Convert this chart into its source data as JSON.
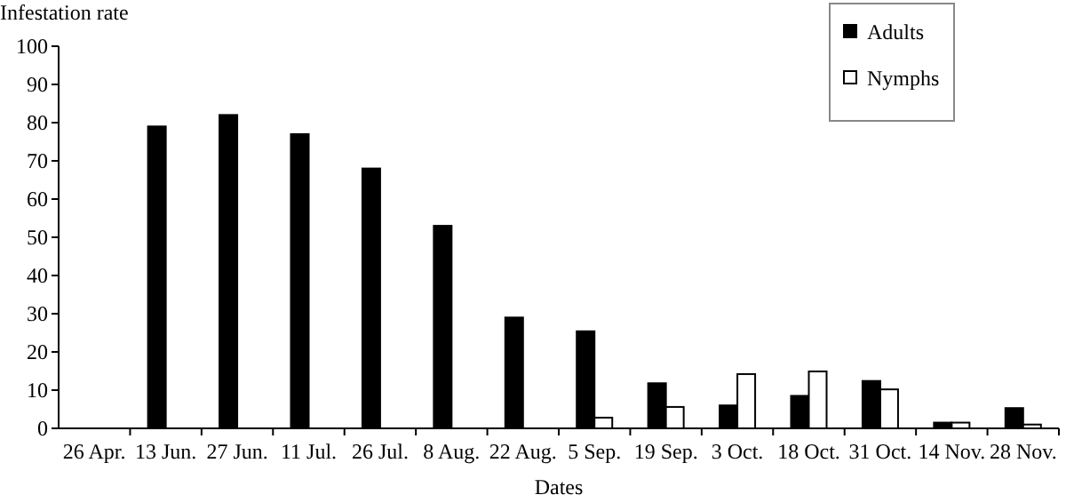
{
  "chart_data": {
    "type": "bar",
    "xlabel": "Dates",
    "ylabel": "Infestation rate",
    "categories": [
      "26 Apr.",
      "13 Jun.",
      "27 Jun.",
      "11 Jul.",
      "26 Jul.",
      "8 Aug.",
      "22 Aug.",
      "5 Sep.",
      "19 Sep.",
      "3 Oct.",
      "18 Oct.",
      "31 Oct.",
      "14 Nov.",
      "28 Nov."
    ],
    "series": [
      {
        "name": "Adults",
        "color": "#000000",
        "values": [
          0,
          79,
          82,
          77,
          68,
          53,
          29,
          25.4,
          11.8,
          6,
          8.5,
          12.4,
          1.5,
          5.3
        ]
      },
      {
        "name": "Nymphs",
        "color": "#ffffff",
        "values": [
          0,
          0,
          0,
          0,
          0,
          0,
          0,
          2.8,
          5.6,
          14.2,
          14.9,
          10.2,
          1.5,
          1
        ]
      }
    ],
    "ylim": [
      0,
      100
    ],
    "yticks": [
      0,
      10,
      20,
      30,
      40,
      50,
      60,
      70,
      80,
      90,
      100
    ],
    "grid": false,
    "legend": "top right"
  }
}
